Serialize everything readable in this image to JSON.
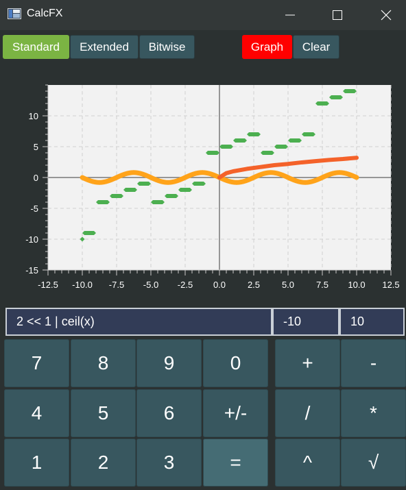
{
  "window": {
    "title": "CalcFX",
    "icons": [
      "app-icon",
      "minimize-icon",
      "maximize-icon",
      "close-icon"
    ]
  },
  "modes": {
    "standard": "Standard",
    "extended": "Extended",
    "bitwise": "Bitwise",
    "graph": "Graph",
    "clear": "Clear"
  },
  "inputs": {
    "expression": "2 << 1 | ceil(x)",
    "x_min": "-10",
    "x_max": "10"
  },
  "keys": {
    "k7": "7",
    "k8": "8",
    "k9": "9",
    "k0": "0",
    "plus": "+",
    "minus": "-",
    "k4": "4",
    "k5": "5",
    "k6": "6",
    "negate": "+/-",
    "divide": "/",
    "multiply": "*",
    "k1": "1",
    "k2": "2",
    "k3": "3",
    "equals": "=",
    "power": "^",
    "sqrt": "√"
  },
  "colors": {
    "green": "#7bb443",
    "red": "#ff0000",
    "key": "#38575f",
    "step_series": "#4caf50",
    "wave_series": "#ffa31a",
    "curve_series": "#f4622a"
  },
  "chart_data": {
    "type": "line",
    "xlim": [
      -12.5,
      12.5
    ],
    "ylim": [
      -15,
      15
    ],
    "xticks": [
      "-12.5",
      "-10.0",
      "-7.5",
      "-5.0",
      "-2.5",
      "0.0",
      "2.5",
      "5.0",
      "7.5",
      "10.0",
      "12.5"
    ],
    "yticks": [
      "10",
      "5",
      "0",
      "-5",
      "-10",
      "-15"
    ],
    "grid": true,
    "series": [
      {
        "color": "#4caf50",
        "style": "step",
        "points": [
          [
            -10,
            -10
          ],
          [
            -10,
            -9
          ],
          [
            -9,
            -9
          ],
          [
            -9,
            -4
          ],
          [
            -8,
            -4
          ],
          [
            -8,
            -3
          ],
          [
            -7,
            -3
          ],
          [
            -7,
            -2
          ],
          [
            -6,
            -2
          ],
          [
            -6,
            -1
          ],
          [
            -5,
            -1
          ],
          [
            -5,
            -4
          ],
          [
            -4,
            -4
          ],
          [
            -4,
            -3
          ],
          [
            -3,
            -3
          ],
          [
            -3,
            -2
          ],
          [
            -2,
            -2
          ],
          [
            -2,
            -1
          ],
          [
            -1,
            -1
          ],
          [
            -1,
            4
          ],
          [
            0,
            4
          ],
          [
            0,
            5
          ],
          [
            1,
            5
          ],
          [
            1,
            6
          ],
          [
            2,
            6
          ],
          [
            2,
            7
          ],
          [
            3,
            7
          ],
          [
            3,
            4
          ],
          [
            4,
            4
          ],
          [
            4,
            5
          ],
          [
            5,
            5
          ],
          [
            5,
            6
          ],
          [
            6,
            6
          ],
          [
            6,
            7
          ],
          [
            7,
            7
          ],
          [
            7,
            12
          ],
          [
            8,
            12
          ],
          [
            8,
            13
          ],
          [
            9,
            13
          ],
          [
            9,
            14
          ],
          [
            10,
            14
          ]
        ]
      },
      {
        "color": "#ffa31a",
        "style": "wave",
        "x": [
          -10,
          10
        ],
        "amplitude": 0.8,
        "period": 5.0
      },
      {
        "color": "#f4622a",
        "style": "curve",
        "points": [
          [
            0,
            0
          ],
          [
            0.5,
            0.7
          ],
          [
            1,
            1.0
          ],
          [
            2,
            1.4
          ],
          [
            3,
            1.7
          ],
          [
            4,
            2.0
          ],
          [
            5,
            2.2
          ],
          [
            6,
            2.45
          ],
          [
            7,
            2.65
          ],
          [
            8,
            2.85
          ],
          [
            9,
            3.0
          ],
          [
            10,
            3.2
          ]
        ]
      }
    ]
  }
}
